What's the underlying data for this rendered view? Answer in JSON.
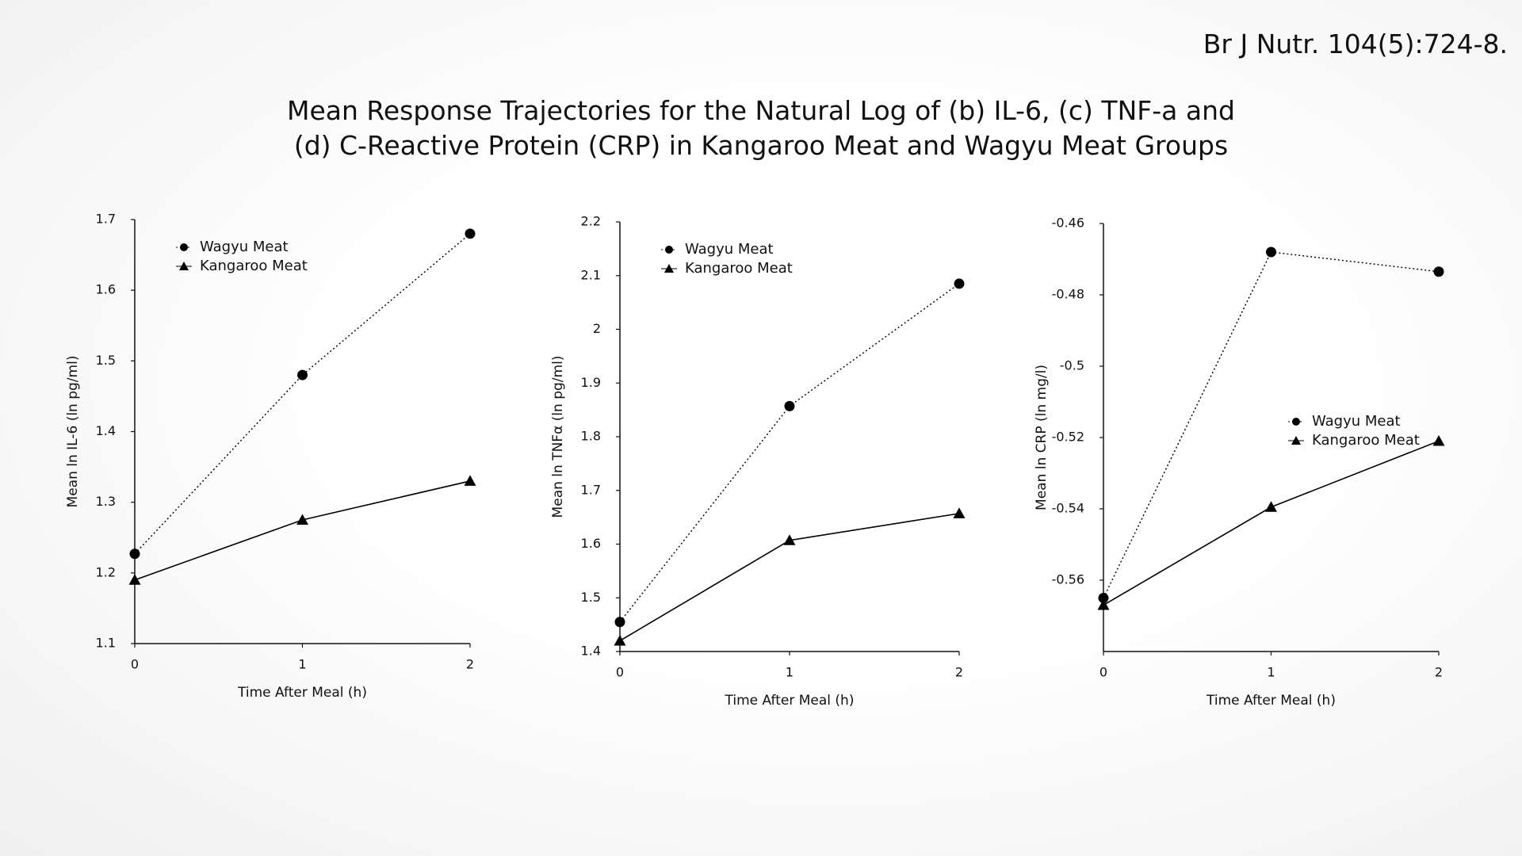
{
  "citation": "Br J Nutr. 104(5):724-8.",
  "title": "Mean Response Trajectories for the Natural Log of (b) IL-6, (c) TNF-a and (d) C-Reactive Protein (CRP) in Kangaroo Meat and Wagyu Meat Groups",
  "chart_data": [
    {
      "type": "line",
      "xlabel": "Time After Meal (h)",
      "ylabel": "Mean ln IL-6 (ln pg/ml)",
      "x": [
        0,
        1,
        2
      ],
      "xlim": [
        0,
        2
      ],
      "xticks": [
        0,
        1,
        2
      ],
      "ylim": [
        1.1,
        1.7
      ],
      "yticks": [
        1.1,
        1.2,
        1.3,
        1.4,
        1.5,
        1.6,
        1.7
      ],
      "legend": "upper left",
      "series": [
        {
          "name": "Wagyu Meat",
          "color": "#000000",
          "line_style": "dotted",
          "marker": "circle",
          "values": [
            1.227,
            1.48,
            1.68
          ]
        },
        {
          "name": "Kangaroo Meat",
          "color": "#000000",
          "line_style": "solid",
          "marker": "triangle",
          "values": [
            1.19,
            1.275,
            1.33
          ]
        }
      ]
    },
    {
      "type": "line",
      "xlabel": "Time After Meal (h)",
      "ylabel": "Mean ln TNFα (ln pg/ml)",
      "x": [
        0,
        1,
        2
      ],
      "xlim": [
        0,
        2
      ],
      "xticks": [
        0,
        1,
        2
      ],
      "ylim": [
        1.4,
        2.2
      ],
      "yticks": [
        1.4,
        1.5,
        1.6,
        1.7,
        1.8,
        1.9,
        2,
        2.1,
        2.2
      ],
      "legend": "upper left",
      "series": [
        {
          "name": "Wagyu Meat",
          "color": "#000000",
          "line_style": "dotted",
          "marker": "circle",
          "values": [
            1.455,
            1.857,
            2.085
          ]
        },
        {
          "name": "Kangaroo Meat",
          "color": "#000000",
          "line_style": "solid",
          "marker": "triangle",
          "values": [
            1.42,
            1.607,
            1.657
          ]
        }
      ]
    },
    {
      "type": "line",
      "xlabel": "Time After Meal (h)",
      "ylabel": "Mean ln CRP  (ln mg/l)",
      "x": [
        0,
        1,
        2
      ],
      "xlim": [
        0,
        2
      ],
      "xticks": [
        0,
        1,
        2
      ],
      "ylim": [
        -0.58,
        -0.46
      ],
      "yticks": [
        -0.56,
        -0.54,
        -0.52,
        -0.5,
        -0.48,
        -0.46
      ],
      "legend": "lower right",
      "series": [
        {
          "name": "Wagyu Meat",
          "color": "#000000",
          "line_style": "dotted",
          "marker": "circle",
          "values": [
            -0.565,
            -0.468,
            -0.4735
          ]
        },
        {
          "name": "Kangaroo Meat",
          "color": "#000000",
          "line_style": "solid",
          "marker": "triangle",
          "values": [
            -0.567,
            -0.5395,
            -0.521
          ]
        }
      ]
    }
  ]
}
